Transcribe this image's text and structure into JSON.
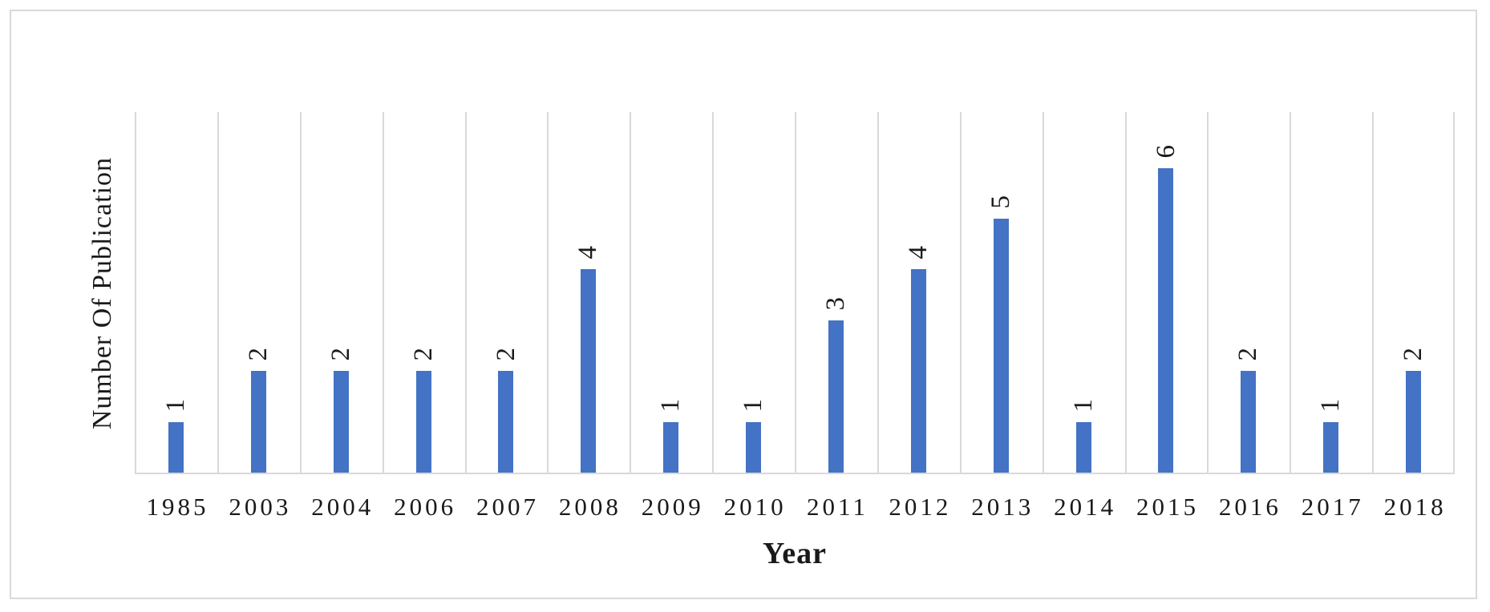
{
  "chart_data": {
    "type": "bar",
    "title": "",
    "categories": [
      "1985",
      "2003",
      "2004",
      "2006",
      "2007",
      "2008",
      "2009",
      "2010",
      "2011",
      "2012",
      "2013",
      "2014",
      "2015",
      "2016",
      "2017",
      "2018"
    ],
    "values": [
      1,
      2,
      2,
      2,
      2,
      4,
      1,
      1,
      3,
      4,
      5,
      1,
      6,
      2,
      1,
      2
    ],
    "data_labels_shown": true,
    "data_label_rotation_degrees": -90,
    "xlabel": "Year",
    "ylabel": "Number Of Publication",
    "ylim": [
      0,
      7.1
    ],
    "y_axis_tick_labels_shown": false,
    "grid": "vertical-category-gridlines",
    "legend_position": "none",
    "colors": {
      "bar": "#4472C4",
      "gridline": "#D9D9D9",
      "axis_line": "#D9D9D9",
      "frame_border": "#D9D9D9",
      "text": "#1A1A1A",
      "background": "#FFFFFF"
    }
  }
}
